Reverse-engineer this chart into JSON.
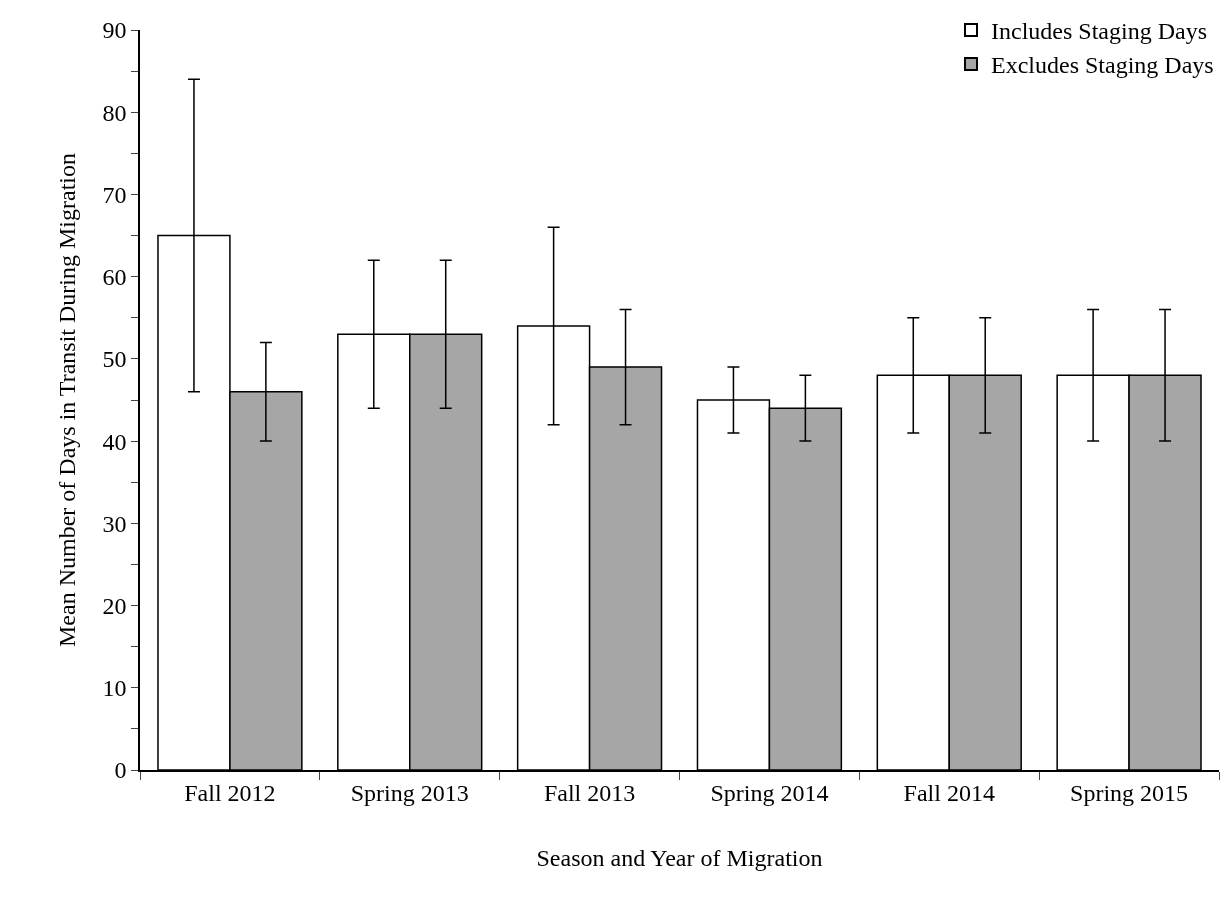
{
  "chart_data": {
    "type": "bar",
    "xlabel": "Season and Year of Migration",
    "ylabel": "Mean Number of Days in Transit During Migration",
    "categories": [
      "Fall 2012",
      "Spring 2013",
      "Fall 2013",
      "Spring 2014",
      "Fall 2014",
      "Spring 2015"
    ],
    "series": [
      {
        "name": "Includes Staging Days",
        "color": "#ffffff",
        "values": [
          65,
          53,
          54,
          45,
          48,
          48
        ],
        "errors": [
          [
            46,
            84
          ],
          [
            44,
            62
          ],
          [
            42,
            66
          ],
          [
            41,
            49
          ],
          [
            41,
            55
          ],
          [
            40,
            56
          ]
        ]
      },
      {
        "name": "Excludes Staging Days",
        "color": "#a6a6a6",
        "values": [
          46,
          53,
          49,
          44,
          48,
          48
        ],
        "errors": [
          [
            40,
            52
          ],
          [
            44,
            62
          ],
          [
            42,
            56
          ],
          [
            40,
            48
          ],
          [
            41,
            55
          ],
          [
            40,
            56
          ]
        ]
      }
    ],
    "ylim": [
      0,
      90
    ],
    "yticks": [
      0,
      {
        "value": 5,
        "label": null
      },
      10,
      {
        "value": 15,
        "label": null
      },
      20,
      {
        "value": 25,
        "label": null
      },
      30,
      {
        "value": 35,
        "label": null
      },
      40,
      {
        "value": 45,
        "label": null
      },
      50,
      {
        "value": 55,
        "label": null
      },
      60,
      {
        "value": 65,
        "label": null
      },
      70,
      {
        "value": 75,
        "label": null
      },
      80,
      {
        "value": 85,
        "label": null
      },
      90
    ],
    "grid": false,
    "legend": "top right"
  }
}
